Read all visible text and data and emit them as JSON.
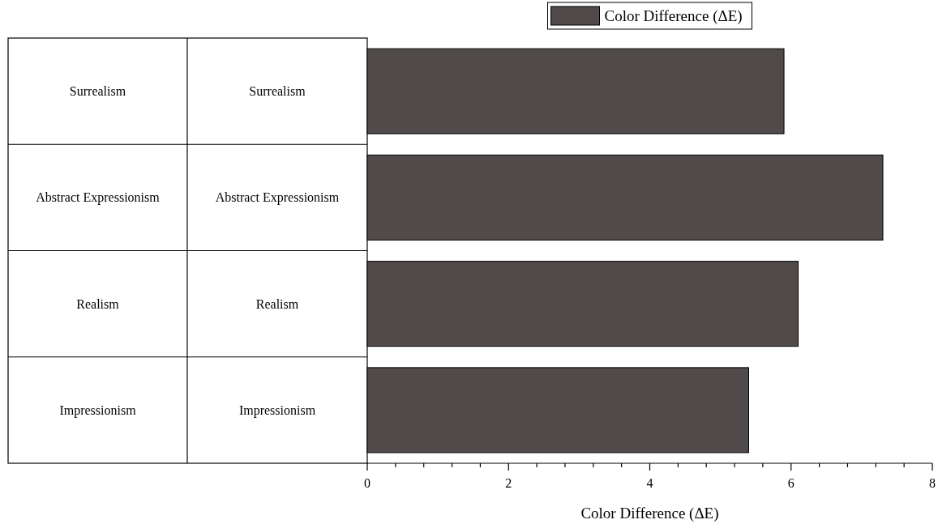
{
  "chart_data": {
    "type": "bar",
    "orientation": "horizontal",
    "categories": [
      "Surrealism",
      "Abstract Expressionism",
      "Realism",
      "Impressionism"
    ],
    "series": [
      {
        "name": "Color Difference (ΔE)",
        "color": "#504a4a",
        "values": [
          5.9,
          7.3,
          6.1,
          5.4
        ]
      }
    ],
    "xlabel": "Color Difference (ΔE)",
    "xlim": [
      0,
      8
    ],
    "xticks": [
      0,
      {
        "value": 0.4,
        "label": null
      },
      {
        "value": 0.8,
        "label": null
      },
      {
        "value": 1.2,
        "label": null
      },
      {
        "value": 1.6,
        "label": null
      },
      2,
      {
        "value": 2.4,
        "label": null
      },
      {
        "value": 2.8,
        "label": null
      },
      {
        "value": 3.2,
        "label": null
      },
      {
        "value": 3.6,
        "label": null
      },
      4,
      {
        "value": 4.4,
        "label": null
      },
      {
        "value": 4.8,
        "label": null
      },
      {
        "value": 5.2,
        "label": null
      },
      {
        "value": 5.6,
        "label": null
      },
      6,
      {
        "value": 6.4,
        "label": null
      },
      {
        "value": 6.8,
        "label": null
      },
      {
        "value": 7.2,
        "label": null
      },
      {
        "value": 7.6,
        "label": null
      },
      8
    ],
    "legend": "top",
    "grid": false
  }
}
